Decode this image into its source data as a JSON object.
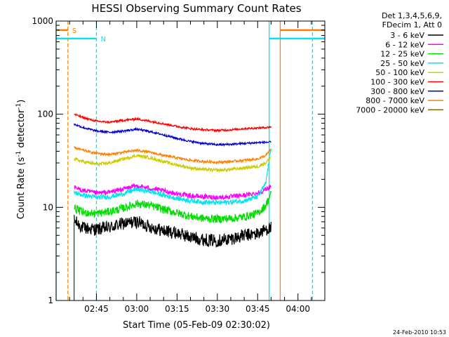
{
  "chart_data": {
    "type": "line",
    "title": "HESSI Observing Summary Count Rates",
    "xlabel": "Start Time (05-Feb-09 02:30:02)",
    "ylabel_parts": {
      "main": "Count Rate (s",
      "sup1": "-1",
      "mid": " detector",
      "sup2": "-1",
      "end": ")"
    },
    "y_scale": "log",
    "x_unit": "minutes after 02:30:02",
    "xlim": [
      0,
      100
    ],
    "ylim": [
      1,
      1000
    ],
    "x_ticks": [
      {
        "value": 15,
        "label": "02:45"
      },
      {
        "value": 30,
        "label": "03:00"
      },
      {
        "value": 45,
        "label": "03:15"
      },
      {
        "value": 60,
        "label": "03:30"
      },
      {
        "value": 75,
        "label": "03:45"
      },
      {
        "value": 90,
        "label": "04:00"
      }
    ],
    "y_ticks": [
      {
        "value": 1,
        "label": "1"
      },
      {
        "value": 10,
        "label": "10"
      },
      {
        "value": 100,
        "label": "100"
      },
      {
        "value": 1000,
        "label": "1000"
      }
    ],
    "legend_title_lines": [
      "Det 1,3,4,5,6,9,",
      "FDecim 1, Att 0"
    ],
    "legend_placement": "right, outside plot",
    "series": [
      {
        "name": "3 - 6 keV",
        "color": "#000000",
        "noise": 0.16,
        "points": [
          [
            6.7,
            7.2
          ],
          [
            10,
            6.0
          ],
          [
            15,
            5.8
          ],
          [
            20,
            6.1
          ],
          [
            25,
            6.7
          ],
          [
            30,
            7.0
          ],
          [
            35,
            6.2
          ],
          [
            40,
            5.6
          ],
          [
            45,
            5.3
          ],
          [
            50,
            4.8
          ],
          [
            55,
            4.5
          ],
          [
            60,
            4.4
          ],
          [
            65,
            4.6
          ],
          [
            70,
            5.0
          ],
          [
            75,
            5.2
          ],
          [
            78,
            5.8
          ],
          [
            80,
            6.0
          ]
        ]
      },
      {
        "name": "6 - 12 keV",
        "color": "#ff00ff",
        "noise": 0.06,
        "points": [
          [
            6.7,
            16.2
          ],
          [
            10,
            15.2
          ],
          [
            15,
            14.2
          ],
          [
            20,
            14.6
          ],
          [
            25,
            15.8
          ],
          [
            30,
            17.0
          ],
          [
            35,
            16.0
          ],
          [
            40,
            15.0
          ],
          [
            45,
            14.0
          ],
          [
            50,
            13.3
          ],
          [
            55,
            13.0
          ],
          [
            60,
            12.8
          ],
          [
            65,
            13.0
          ],
          [
            70,
            13.5
          ],
          [
            75,
            14.2
          ],
          [
            78,
            15.5
          ],
          [
            80,
            17.0
          ]
        ]
      },
      {
        "name": "12 - 25 keV",
        "color": "#00dd00",
        "noise": 0.1,
        "points": [
          [
            6.7,
            9.8
          ],
          [
            10,
            8.8
          ],
          [
            15,
            8.6
          ],
          [
            20,
            9.0
          ],
          [
            25,
            9.8
          ],
          [
            30,
            11.0
          ],
          [
            35,
            10.5
          ],
          [
            40,
            9.5
          ],
          [
            45,
            8.7
          ],
          [
            50,
            8.0
          ],
          [
            55,
            7.6
          ],
          [
            60,
            7.5
          ],
          [
            65,
            7.6
          ],
          [
            70,
            7.9
          ],
          [
            75,
            8.6
          ],
          [
            78,
            10.5
          ],
          [
            80,
            14.0
          ]
        ]
      },
      {
        "name": "25 - 50 keV",
        "color": "#00e5ee",
        "noise": 0.06,
        "points": [
          [
            6.7,
            14.5
          ],
          [
            10,
            13.5
          ],
          [
            15,
            12.8
          ],
          [
            20,
            13.0
          ],
          [
            25,
            14.0
          ],
          [
            30,
            15.6
          ],
          [
            35,
            14.8
          ],
          [
            40,
            13.5
          ],
          [
            45,
            12.5
          ],
          [
            50,
            11.8
          ],
          [
            55,
            11.4
          ],
          [
            60,
            11.2
          ],
          [
            65,
            11.4
          ],
          [
            70,
            11.8
          ],
          [
            75,
            13.0
          ],
          [
            78,
            18.0
          ],
          [
            80,
            45.0
          ]
        ]
      },
      {
        "name": "50 - 100 keV",
        "color": "#cccc00",
        "noise": 0.04,
        "points": [
          [
            6.7,
            33.0
          ],
          [
            10,
            31.0
          ],
          [
            15,
            29.0
          ],
          [
            20,
            30.0
          ],
          [
            25,
            33.0
          ],
          [
            30,
            36.0
          ],
          [
            35,
            34.0
          ],
          [
            40,
            31.0
          ],
          [
            45,
            28.5
          ],
          [
            50,
            26.5
          ],
          [
            55,
            25.5
          ],
          [
            60,
            25.0
          ],
          [
            65,
            25.5
          ],
          [
            70,
            26.5
          ],
          [
            75,
            27.5
          ],
          [
            78,
            30.0
          ],
          [
            80,
            35.0
          ]
        ]
      },
      {
        "name": "100 - 300 keV",
        "color": "#ff0000",
        "noise": 0.025,
        "points": [
          [
            6.7,
            100.0
          ],
          [
            10,
            92.0
          ],
          [
            15,
            84.0
          ],
          [
            20,
            82.0
          ],
          [
            25,
            86.0
          ],
          [
            30,
            89.0
          ],
          [
            35,
            84.0
          ],
          [
            40,
            79.0
          ],
          [
            45,
            74.0
          ],
          [
            50,
            70.0
          ],
          [
            55,
            68.0
          ],
          [
            60,
            67.0
          ],
          [
            65,
            68.0
          ],
          [
            70,
            70.0
          ],
          [
            75,
            71.0
          ],
          [
            78,
            72.0
          ],
          [
            80,
            73.0
          ]
        ]
      },
      {
        "name": "300 - 800 keV",
        "color": "#0000cc",
        "noise": 0.025,
        "points": [
          [
            6.7,
            78.0
          ],
          [
            10,
            72.0
          ],
          [
            15,
            66.0
          ],
          [
            20,
            64.0
          ],
          [
            25,
            66.0
          ],
          [
            30,
            69.0
          ],
          [
            35,
            65.0
          ],
          [
            40,
            60.0
          ],
          [
            45,
            55.0
          ],
          [
            50,
            51.0
          ],
          [
            55,
            48.5
          ],
          [
            60,
            47.0
          ],
          [
            65,
            47.5
          ],
          [
            70,
            48.5
          ],
          [
            75,
            49.5
          ],
          [
            78,
            50.0
          ],
          [
            80,
            50.0
          ]
        ]
      },
      {
        "name": "800 - 7000 keV",
        "color": "#ff8000",
        "noise": 0.03,
        "points": [
          [
            6.7,
            44.0
          ],
          [
            10,
            41.0
          ],
          [
            15,
            38.0
          ],
          [
            20,
            37.0
          ],
          [
            25,
            39.0
          ],
          [
            30,
            41.0
          ],
          [
            35,
            39.0
          ],
          [
            40,
            36.0
          ],
          [
            45,
            34.0
          ],
          [
            50,
            32.0
          ],
          [
            55,
            31.0
          ],
          [
            60,
            30.5
          ],
          [
            65,
            31.0
          ],
          [
            70,
            32.0
          ],
          [
            75,
            33.0
          ],
          [
            78,
            36.0
          ],
          [
            80,
            42.0
          ]
        ]
      },
      {
        "name": "7000 - 20000 keV",
        "color": "#806000",
        "noise": 0,
        "points": []
      }
    ],
    "event_markers": [
      {
        "type": "solid",
        "x": 0,
        "color": "#00e5ee"
      },
      {
        "type": "solid",
        "x": 79.3,
        "color": "#00e5ee"
      },
      {
        "type": "solid",
        "x": 83.4,
        "color": "#ff8000"
      },
      {
        "type": "dashed",
        "x": 4.4,
        "color": "#ff8000"
      },
      {
        "type": "dashed",
        "x": 15,
        "color": "#00e5ee"
      },
      {
        "type": "dashed",
        "x": 95.4,
        "color": "#00e5ee"
      },
      {
        "type": "dark-line",
        "x": 6.7,
        "color": "#000000",
        "y_from": 1,
        "y_to": 7
      }
    ],
    "flag_bars": [
      {
        "x_from": 0,
        "x_to": 4.4,
        "y": 800,
        "color": "#ff8000",
        "label": "S"
      },
      {
        "x_from": 0,
        "x_to": 15,
        "y": 650,
        "color": "#00e5ee",
        "label": "N"
      },
      {
        "x_from": 83.4,
        "x_to": 100,
        "y": 800,
        "color": "#ff8000",
        "label": ""
      },
      {
        "x_from": 79.3,
        "x_to": 100,
        "y": 650,
        "color": "#00e5ee",
        "label": ""
      }
    ],
    "footer_timestamp": "24-Feb-2010 10:53"
  }
}
